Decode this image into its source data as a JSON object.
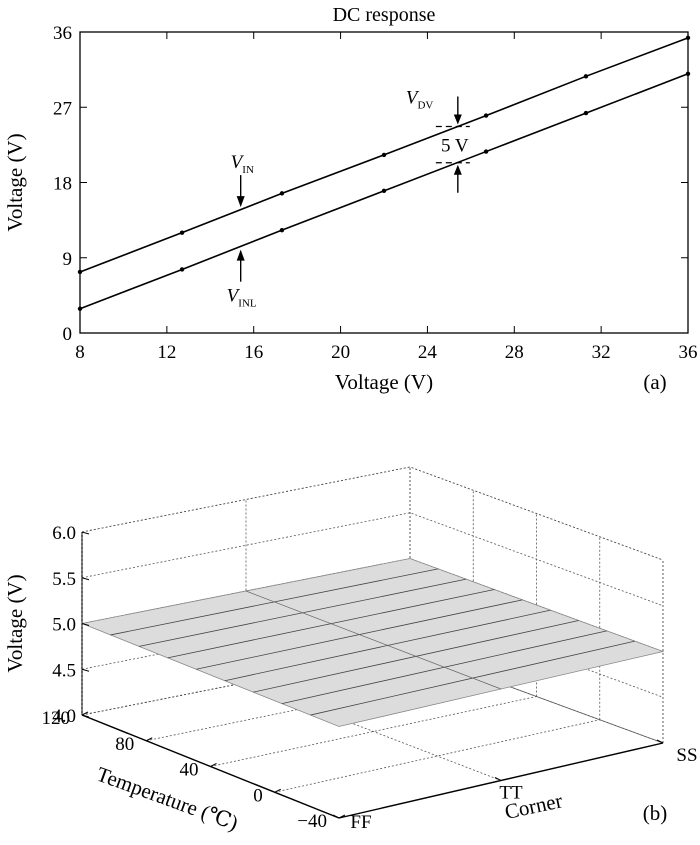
{
  "chart_data": [
    {
      "type": "line",
      "panel_label": "(a)",
      "title": "DC response",
      "xlabel": "Voltage (V)",
      "ylabel": "Voltage (V)",
      "xlim": [
        8,
        36
      ],
      "ylim": [
        0,
        36
      ],
      "xticks": [
        "8",
        "12",
        "16",
        "20",
        "24",
        "28",
        "32",
        "36"
      ],
      "yticks": [
        "0",
        "9",
        "18",
        "27",
        "36"
      ],
      "grid": false,
      "series": [
        {
          "name_main": "V",
          "name_sub": "IN",
          "x": [
            8,
            12.7,
            17.3,
            22,
            26.7,
            31.3,
            36
          ],
          "y": [
            7.3,
            12,
            16.7,
            21.3,
            26,
            30.7,
            35.3
          ]
        },
        {
          "name_main": "V",
          "name_sub": "INL",
          "x": [
            8,
            12.7,
            17.3,
            22,
            26.7,
            31.3,
            36
          ],
          "y": [
            2.9,
            7.6,
            12.3,
            17,
            21.7,
            26.3,
            31
          ]
        }
      ],
      "annotations": [
        {
          "main": "V",
          "sub": "DV",
          "text": ""
        },
        {
          "main": "",
          "sub": "",
          "text": "5 V"
        }
      ]
    },
    {
      "type": "surface",
      "panel_label": "(b)",
      "xlabel": "Corner",
      "ylabel": "Temperature (℃)",
      "zlabel": "Voltage (V)",
      "corner_ticks": [
        "FF",
        "TT",
        "SS"
      ],
      "temperature_ticks": [
        "-40",
        "0",
        "40",
        "80",
        "120"
      ],
      "zticks": [
        "4.0",
        "4.5",
        "5.0",
        "5.5",
        "6.0"
      ],
      "zlim": [
        4.0,
        6.0
      ],
      "grid": true,
      "surface_value": 5.0,
      "surface_color": "#dcdcdc"
    }
  ]
}
